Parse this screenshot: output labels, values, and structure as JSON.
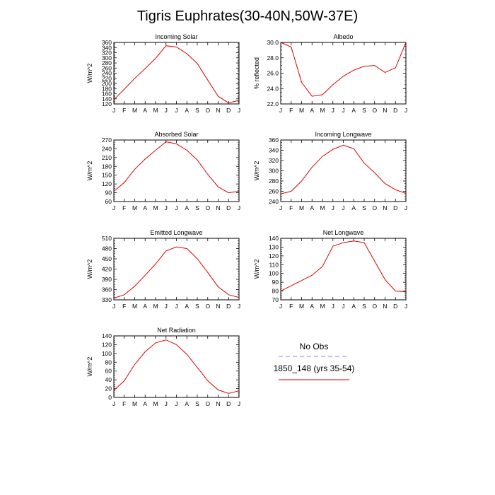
{
  "title": "Tigris Euphrates(30-40N,50W-37E)",
  "months": [
    "J",
    "F",
    "M",
    "A",
    "M",
    "J",
    "J",
    "A",
    "S",
    "O",
    "N",
    "D",
    "J"
  ],
  "legend": {
    "no_obs": "No Obs",
    "no_obs_color": "#8080ff",
    "model": "1850_148 (yrs 35-54)",
    "model_color": "#e00000"
  },
  "chart_data": [
    {
      "type": "line",
      "title": "Incoming Solar",
      "ylabel": "W/m^2",
      "ylim": [
        120,
        360
      ],
      "yticks": [
        "120",
        "140",
        "160",
        "180",
        "200",
        "220",
        "240",
        "260",
        "280",
        "300",
        "320",
        "340",
        "360"
      ],
      "series": [
        {
          "values": [
            136,
            178,
            220,
            258,
            298,
            347,
            342,
            316,
            278,
            213,
            150,
            124,
            134
          ]
        }
      ]
    },
    {
      "type": "line",
      "title": "Albedo",
      "ylabel": "% reflected",
      "ylim": [
        22.0,
        30.0
      ],
      "yticks": [
        "22.0",
        "24.0",
        "26.0",
        "28.0",
        "30.0"
      ],
      "series": [
        {
          "values": [
            30.0,
            29.4,
            24.8,
            23.0,
            23.2,
            24.5,
            25.6,
            26.4,
            26.9,
            27.0,
            26.1,
            26.7,
            30.0
          ]
        }
      ]
    },
    {
      "type": "line",
      "title": "Absorbed Solar",
      "ylabel": "W/m^2",
      "ylim": [
        60,
        270
      ],
      "yticks": [
        "60",
        "90",
        "120",
        "150",
        "180",
        "210",
        "240",
        "270"
      ],
      "series": [
        {
          "values": [
            95,
            125,
            170,
            205,
            235,
            264,
            257,
            235,
            202,
            153,
            110,
            90,
            95
          ]
        }
      ]
    },
    {
      "type": "line",
      "title": "Incoming Longwave",
      "ylabel": "W/m^2",
      "ylim": [
        240,
        360
      ],
      "yticks": [
        "240",
        "260",
        "280",
        "300",
        "320",
        "340",
        "360"
      ],
      "series": [
        {
          "values": [
            255,
            260,
            280,
            307,
            328,
            342,
            350,
            343,
            315,
            296,
            275,
            263,
            256
          ]
        }
      ]
    },
    {
      "type": "line",
      "title": "Emitted Longwave",
      "ylabel": "W/m^2",
      "ylim": [
        330,
        510
      ],
      "yticks": [
        "330",
        "360",
        "390",
        "420",
        "450",
        "480",
        "510"
      ],
      "series": [
        {
          "values": [
            335,
            345,
            370,
            402,
            435,
            473,
            485,
            480,
            450,
            410,
            368,
            345,
            337
          ]
        }
      ]
    },
    {
      "type": "line",
      "title": "Net Longwave",
      "ylabel": "W/m^2",
      "ylim": [
        70,
        140
      ],
      "yticks": [
        "70",
        "80",
        "90",
        "100",
        "110",
        "120",
        "130",
        "140"
      ],
      "series": [
        {
          "values": [
            80,
            86,
            92,
            98,
            108,
            131,
            135,
            137,
            135,
            114,
            93,
            80,
            79
          ]
        }
      ]
    },
    {
      "type": "line",
      "title": "Net Radiation",
      "ylabel": "W/m^2",
      "ylim": [
        0,
        140
      ],
      "yticks": [
        "0",
        "20",
        "40",
        "60",
        "80",
        "100",
        "120",
        "140"
      ],
      "series": [
        {
          "values": [
            16,
            38,
            75,
            104,
            124,
            131,
            120,
            98,
            68,
            38,
            17,
            9,
            15
          ]
        }
      ]
    }
  ]
}
